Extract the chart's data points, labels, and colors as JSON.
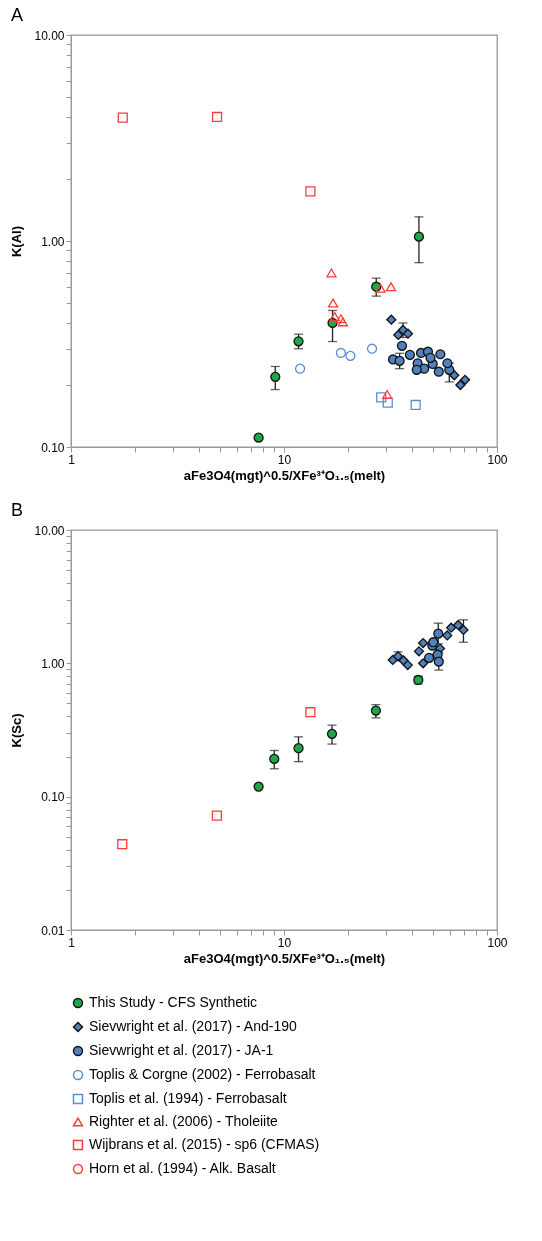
{
  "chart_data": [
    {
      "type": "scatter",
      "title": "A",
      "xlabel": "aFe3O4(mgt)^0.5/XFe³⁺O₁.₅(melt)",
      "ylabel": "K(Al)",
      "log": "xy",
      "legend": "bottom",
      "xlim": [
        1,
        100
      ],
      "ylim": [
        0.1,
        10
      ],
      "xticks": [
        1,
        {
          "value": 2,
          "label": null
        },
        {
          "value": 3,
          "label": null
        },
        {
          "value": 4,
          "label": null
        },
        {
          "value": 5,
          "label": null
        },
        {
          "value": 6,
          "label": null
        },
        {
          "value": 7,
          "label": null
        },
        {
          "value": 8,
          "label": null
        },
        {
          "value": 9,
          "label": null
        },
        10,
        {
          "value": 20,
          "label": null
        },
        {
          "value": 30,
          "label": null
        },
        {
          "value": 40,
          "label": null
        },
        {
          "value": 50,
          "label": null
        },
        {
          "value": 60,
          "label": null
        },
        {
          "value": 70,
          "label": null
        },
        {
          "value": 80,
          "label": null
        },
        {
          "value": 90,
          "label": null
        },
        100
      ],
      "yticks": [
        {
          "value": 0.1,
          "label": "0.10"
        },
        {
          "value": 0.2,
          "label": null
        },
        {
          "value": 0.3,
          "label": null
        },
        {
          "value": 0.4,
          "label": null
        },
        {
          "value": 0.5,
          "label": null
        },
        {
          "value": 0.6,
          "label": null
        },
        {
          "value": 0.7,
          "label": null
        },
        {
          "value": 0.8,
          "label": null
        },
        {
          "value": 0.9,
          "label": null
        },
        {
          "value": 1,
          "label": "1.00"
        },
        {
          "value": 2,
          "label": null
        },
        {
          "value": 3,
          "label": null
        },
        {
          "value": 4,
          "label": null
        },
        {
          "value": 5,
          "label": null
        },
        {
          "value": 6,
          "label": null
        },
        {
          "value": 7,
          "label": null
        },
        {
          "value": 8,
          "label": null
        },
        {
          "value": 9,
          "label": null
        },
        {
          "value": 10,
          "label": "10.00"
        }
      ],
      "series": [
        {
          "name": "This Study - CFS Synthetic",
          "color": "#1fa84a",
          "marker": "circle",
          "x": [
            7.6,
            9.1,
            11.7,
            16.9,
            27.1,
            43
          ],
          "values": [
            0.111,
            0.219,
            0.326,
            0.4,
            0.6,
            1.05
          ],
          "errors": [
            null,
            [
              0.19,
              0.246
            ],
            [
              0.3,
              0.353
            ],
            [
              0.325,
              0.46
            ],
            [
              0.54,
              0.66
            ],
            [
              0.785,
              1.31
            ]
          ]
        },
        {
          "name": "Sievwright et al. (2017) - And-190",
          "color": "#4f81bd",
          "marker": "diamond",
          "x": [
            31.9,
            34.4,
            36.2,
            38.2,
            63,
            67.3,
            70.8
          ],
          "values": [
            0.415,
            0.35,
            0.37,
            0.355,
            0.223,
            0.2,
            0.212
          ],
          "errors": [
            null,
            null,
            [
              0.34,
              0.4
            ],
            null,
            null,
            null,
            null
          ]
        },
        {
          "name": "Sievwright et al. (2017) - JA-1",
          "color": "#4f81bd",
          "marker": "circle",
          "x": [
            35.8,
            32.5,
            34.9,
            39,
            44,
            47.4,
            54.2,
            42.4,
            45.5,
            49.9,
            53.3,
            59.7,
            58.5,
            48.7,
            42
          ],
          "values": [
            0.31,
            0.266,
            0.262,
            0.28,
            0.286,
            0.29,
            0.282,
            0.255,
            0.24,
            0.253,
            0.232,
            0.237,
            0.255,
            0.271,
            0.237
          ],
          "errors": [
            null,
            null,
            [
              0.24,
              0.285
            ],
            null,
            null,
            null,
            null,
            null,
            null,
            null,
            null,
            [
              0.207,
              0.255
            ],
            null,
            null,
            null
          ]
        },
        {
          "name": "Toplis & Corgne (2002) - Ferrobasalt",
          "color": "#5b8fd0",
          "marker": "circle",
          "x": [
            11.9,
            18.5,
            20.5,
            25.9
          ],
          "values": [
            0.24,
            0.286,
            0.277,
            0.3
          ]
        },
        {
          "name": "Toplis et al. (1994) - Ferrobasalt",
          "color": "#5b8fd0",
          "marker": "square",
          "x": [
            28.6,
            30.7,
            41.5
          ],
          "values": [
            0.174,
            0.164,
            0.16
          ]
        },
        {
          "name": "Righter et al. (2006) - Tholeiite",
          "color": "#ff3b3b",
          "marker": "triangle",
          "x": [
            16.7,
            17.0,
            17.3,
            18.5,
            18.9,
            28.4,
            31.8,
            30.5
          ],
          "values": [
            0.7,
            0.5,
            0.43,
            0.42,
            0.405,
            0.59,
            0.6,
            0.18
          ]
        },
        {
          "name": "Wijbrans et al. (2015) - sp6 (CFMAS)",
          "color": "#ff3b3b",
          "marker": "square",
          "x": [
            1.75,
            4.85,
            13.3
          ],
          "values": [
            3.97,
            4.0,
            1.74
          ]
        },
        {
          "name": "Horn et al. (1994) - Alk. Basalt",
          "color": "#ff3b3b",
          "marker": "circle"
        }
      ]
    },
    {
      "type": "scatter",
      "title": "B",
      "xlabel": "aFe3O4(mgt)^0.5/XFe³⁺O₁.₅(melt)",
      "ylabel": "K(Sc)",
      "log": "xy",
      "legend": "bottom",
      "xlim": [
        1,
        100
      ],
      "ylim": [
        0.01,
        10
      ],
      "xticks": [
        1,
        {
          "value": 2,
          "label": null
        },
        {
          "value": 3,
          "label": null
        },
        {
          "value": 4,
          "label": null
        },
        {
          "value": 5,
          "label": null
        },
        {
          "value": 6,
          "label": null
        },
        {
          "value": 7,
          "label": null
        },
        {
          "value": 8,
          "label": null
        },
        {
          "value": 9,
          "label": null
        },
        10,
        {
          "value": 20,
          "label": null
        },
        {
          "value": 30,
          "label": null
        },
        {
          "value": 40,
          "label": null
        },
        {
          "value": 50,
          "label": null
        },
        {
          "value": 60,
          "label": null
        },
        {
          "value": 70,
          "label": null
        },
        {
          "value": 80,
          "label": null
        },
        {
          "value": 90,
          "label": null
        },
        100
      ],
      "yticks": [
        {
          "value": 0.01,
          "label": "0.01"
        },
        {
          "value": 0.02,
          "label": null
        },
        {
          "value": 0.03,
          "label": null
        },
        {
          "value": 0.04,
          "label": null
        },
        {
          "value": 0.05,
          "label": null
        },
        {
          "value": 0.06,
          "label": null
        },
        {
          "value": 0.07,
          "label": null
        },
        {
          "value": 0.08,
          "label": null
        },
        {
          "value": 0.09,
          "label": null
        },
        {
          "value": 0.1,
          "label": "0.10"
        },
        {
          "value": 0.2,
          "label": null
        },
        {
          "value": 0.3,
          "label": null
        },
        {
          "value": 0.4,
          "label": null
        },
        {
          "value": 0.5,
          "label": null
        },
        {
          "value": 0.6,
          "label": null
        },
        {
          "value": 0.7,
          "label": null
        },
        {
          "value": 0.8,
          "label": null
        },
        {
          "value": 0.9,
          "label": null
        },
        {
          "value": 1,
          "label": "1.00"
        },
        {
          "value": 2,
          "label": null
        },
        {
          "value": 3,
          "label": null
        },
        {
          "value": 4,
          "label": null
        },
        {
          "value": 5,
          "label": null
        },
        {
          "value": 6,
          "label": null
        },
        {
          "value": 7,
          "label": null
        },
        {
          "value": 8,
          "label": null
        },
        {
          "value": 9,
          "label": null
        },
        {
          "value": 10,
          "label": "10.00"
        }
      ],
      "series": [
        {
          "name": "This Study - CFS Synthetic",
          "color": "#1fa84a",
          "marker": "circle",
          "x": [
            7.6,
            9.0,
            11.7,
            16.8,
            27,
            42.7
          ],
          "values": [
            0.119,
            0.192,
            0.231,
            0.296,
            0.442,
            0.75
          ],
          "errors": [
            null,
            [
              0.162,
              0.222
            ],
            [
              0.183,
              0.281
            ],
            [
              0.248,
              0.344
            ],
            [
              0.39,
              0.49
            ],
            [
              0.7,
              0.8
            ]
          ]
        },
        {
          "name": "Sievwright et al. (2017) - And-190",
          "color": "#4f81bd",
          "marker": "diamond",
          "x": [
            32.4,
            34.3,
            36.4,
            38.1,
            43,
            45,
            45,
            54,
            58.4,
            60.9,
            65.7,
            69.6
          ],
          "values": [
            1.06,
            1.13,
            1.05,
            0.97,
            1.23,
            1.42,
            1.0,
            1.29,
            1.62,
            1.85,
            1.94,
            1.78
          ],
          "errors": [
            null,
            [
              1.05,
              1.22
            ],
            null,
            null,
            null,
            null,
            null,
            null,
            null,
            null,
            null,
            [
              1.44,
              2.12
            ]
          ]
        },
        {
          "name": "Sievwright et al. (2017) - JA-1",
          "color": "#4f81bd",
          "marker": "circle",
          "x": [
            53,
            49.7,
            48,
            52.6,
            53.3,
            50.2
          ],
          "values": [
            1.67,
            1.36,
            1.1,
            1.16,
            1.03,
            1.44
          ],
          "errors": [
            [
              1.4,
              2.0
            ],
            null,
            null,
            null,
            [
              0.89,
              1.2
            ],
            null
          ]
        },
        {
          "name": "Toplis & Corgne (2002) - Ferrobasalt",
          "color": "#5b8fd0",
          "marker": "circle"
        },
        {
          "name": "Toplis et al. (1994) - Ferrobasalt",
          "color": "#5b8fd0",
          "marker": "square"
        },
        {
          "name": "Righter et al. (2006) - Tholeiite",
          "color": "#ff3b3b",
          "marker": "triangle"
        },
        {
          "name": "Wijbrans et al. (2015) - sp6 (CFMAS)",
          "color": "#ff3b3b",
          "marker": "square",
          "x": [
            1.74,
            4.84,
            13.3
          ],
          "values": [
            0.044,
            0.072,
            0.43
          ]
        }
      ]
    }
  ]
}
